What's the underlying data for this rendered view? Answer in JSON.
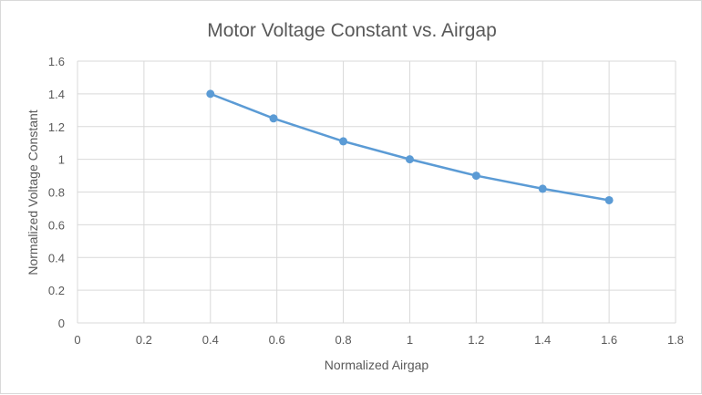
{
  "chart_data": {
    "type": "line",
    "title": "Motor Voltage Constant vs. Airgap",
    "xlabel": "Normalized Airgap",
    "ylabel": "Normalized Voltage Constant",
    "xlim": [
      0,
      1.8
    ],
    "ylim": [
      0,
      1.6
    ],
    "xticks": [
      "0",
      "0.2",
      "0.4",
      "0.6",
      "0.8",
      "1",
      "1.2",
      "1.4",
      "1.6",
      "1.8"
    ],
    "yticks": [
      "0",
      "0.2",
      "0.4",
      "0.6",
      "0.8",
      "1",
      "1.2",
      "1.4",
      "1.6"
    ],
    "grid": true,
    "legend": "none",
    "series": [
      {
        "name": "Normalized Voltage Constant",
        "color": "#5b9bd5",
        "x": [
          0.4,
          0.59,
          0.8,
          1.0,
          1.2,
          1.4,
          1.6
        ],
        "y": [
          1.4,
          1.25,
          1.11,
          1.0,
          0.9,
          0.82,
          0.75
        ]
      }
    ]
  }
}
